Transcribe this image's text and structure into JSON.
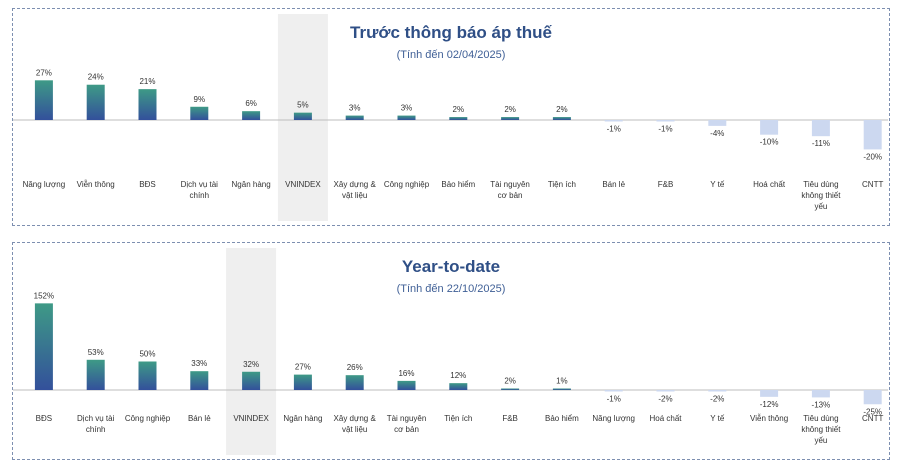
{
  "chart_data": [
    {
      "type": "bar",
      "title": "Trước thông báo áp thuế",
      "subtitle": "(Tính đến 02/04/2025)",
      "unit": "%",
      "highlight": "VNINDEX",
      "categories": [
        "Năng lượng",
        "Viễn thông",
        "BĐS",
        "Dịch vụ tài chính",
        "Ngân hàng",
        "VNINDEX",
        "Xây dựng & vật liệu",
        "Công nghiệp",
        "Bảo hiểm",
        "Tài nguyên cơ bản",
        "Tiện ích",
        "Bán lẻ",
        "F&B",
        "Y tế",
        "Hoá chất",
        "Tiêu dùng không thiết yếu",
        "CNTT"
      ],
      "values": [
        27,
        24,
        21,
        9,
        6,
        5,
        3,
        3,
        2,
        2,
        2,
        -1,
        -1,
        -4,
        -10,
        -11,
        -20
      ],
      "value_labels": [
        "27%",
        "24%",
        "21%",
        "9%",
        "6%",
        "5%",
        "3%",
        "3%",
        "2%",
        "2%",
        "2%",
        "-1%",
        "-1%",
        "-4%",
        "-10%",
        "-11%",
        "-20%"
      ]
    },
    {
      "type": "bar",
      "title": "Year-to-date",
      "subtitle": "(Tính đến 22/10/2025)",
      "unit": "%",
      "highlight": "VNINDEX",
      "categories": [
        "BĐS",
        "Dịch vụ tài chính",
        "Công nghiệp",
        "Bán lẻ",
        "VNINDEX",
        "Ngân hàng",
        "Xây dựng & vật liệu",
        "Tài nguyên cơ bản",
        "Tiện ích",
        "F&B",
        "Bảo hiểm",
        "Năng lượng",
        "Hoá chất",
        "Y tế",
        "Viễn thông",
        "Tiêu dùng không thiết yếu",
        "CNTT"
      ],
      "values": [
        152,
        53,
        50,
        33,
        32,
        27,
        26,
        16,
        12,
        2,
        1,
        -1,
        -2,
        -2,
        -12,
        -13,
        -25
      ],
      "value_labels": [
        "152%",
        "53%",
        "50%",
        "33%",
        "32%",
        "27%",
        "26%",
        "16%",
        "12%",
        "2%",
        "1%",
        "-1%",
        "-2%",
        "-2%",
        "-12%",
        "-13%",
        "-25%"
      ]
    }
  ],
  "colors": {
    "positive_top": "#3e9a86",
    "positive_bottom": "#33509b",
    "negative": "#ccd8f0",
    "highlight_band": "#efefef",
    "axis": "#bdbdbd",
    "title": "#2f4f86",
    "label": "#333333"
  }
}
